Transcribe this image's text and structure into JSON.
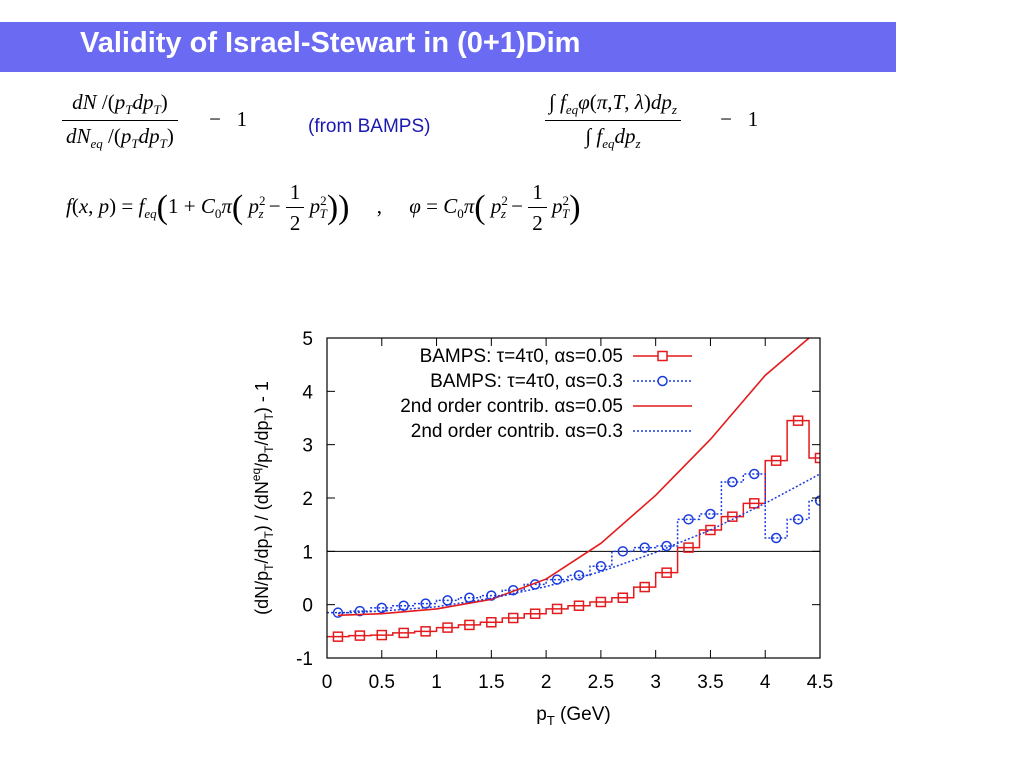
{
  "slide": {
    "title": "Validity of Israel-Stewart in (0+1)Dim",
    "note": "(from BAMPS)"
  },
  "chart_data": {
    "type": "line",
    "title": "",
    "xlabel": "p_T (GeV)",
    "ylabel": "(dN/p_T/dp_T) / (dN^eq/p_T/dp_T) - 1",
    "xlim": [
      0,
      4.5
    ],
    "ylim": [
      -1,
      5
    ],
    "xticks": [
      "0",
      "0.5",
      "1",
      "1.5",
      "2",
      "2.5",
      "3",
      "3.5",
      "4",
      "4.5"
    ],
    "yticks": [
      "-1",
      "0",
      "1",
      "2",
      "3",
      "4",
      "5"
    ],
    "reference_line": 1,
    "legend_position": "top-right",
    "series": [
      {
        "name": "BAMPS: τ=4τ0, αs=0.05",
        "style": "step-squares",
        "color": "#e41a1c",
        "x": [
          0.1,
          0.3,
          0.5,
          0.7,
          0.9,
          1.1,
          1.3,
          1.5,
          1.7,
          1.9,
          2.1,
          2.3,
          2.5,
          2.7,
          2.9,
          3.1,
          3.3,
          3.5,
          3.7,
          3.9,
          4.1,
          4.3,
          4.5
        ],
        "y": [
          -0.6,
          -0.58,
          -0.57,
          -0.53,
          -0.5,
          -0.43,
          -0.38,
          -0.33,
          -0.25,
          -0.17,
          -0.08,
          -0.02,
          0.05,
          0.13,
          0.33,
          0.6,
          1.07,
          1.4,
          1.65,
          1.9,
          2.7,
          3.45,
          2.75
        ]
      },
      {
        "name": "BAMPS: τ=4τ0, αs=0.3",
        "style": "step-circles-dotted",
        "color": "#1a3be0",
        "x": [
          0.1,
          0.3,
          0.5,
          0.7,
          0.9,
          1.1,
          1.3,
          1.5,
          1.7,
          1.9,
          2.1,
          2.3,
          2.5,
          2.7,
          2.9,
          3.1,
          3.3,
          3.5,
          3.7,
          3.9,
          4.1,
          4.3,
          4.5
        ],
        "y": [
          -0.15,
          -0.12,
          -0.06,
          -0.02,
          0.02,
          0.08,
          0.13,
          0.17,
          0.27,
          0.38,
          0.47,
          0.55,
          0.72,
          1.0,
          1.07,
          1.1,
          1.6,
          1.7,
          2.3,
          2.45,
          1.25,
          1.6,
          1.95
        ]
      },
      {
        "name": "2nd order contrib. αs=0.05",
        "style": "solid",
        "color": "#e41a1c",
        "x": [
          0.1,
          0.5,
          1.0,
          1.5,
          2.0,
          2.5,
          3.0,
          3.5,
          4.0,
          4.4
        ],
        "y": [
          -0.2,
          -0.17,
          -0.08,
          0.1,
          0.48,
          1.15,
          2.05,
          3.1,
          4.3,
          5.0
        ]
      },
      {
        "name": "2nd order contrib.  αs=0.3",
        "style": "dotted",
        "color": "#1a3be0",
        "x": [
          0.1,
          0.5,
          1.0,
          1.5,
          2.0,
          2.5,
          3.0,
          3.5,
          4.0,
          4.5
        ],
        "y": [
          -0.16,
          -0.12,
          -0.04,
          0.12,
          0.34,
          0.62,
          0.98,
          1.4,
          1.9,
          2.45
        ]
      }
    ]
  }
}
